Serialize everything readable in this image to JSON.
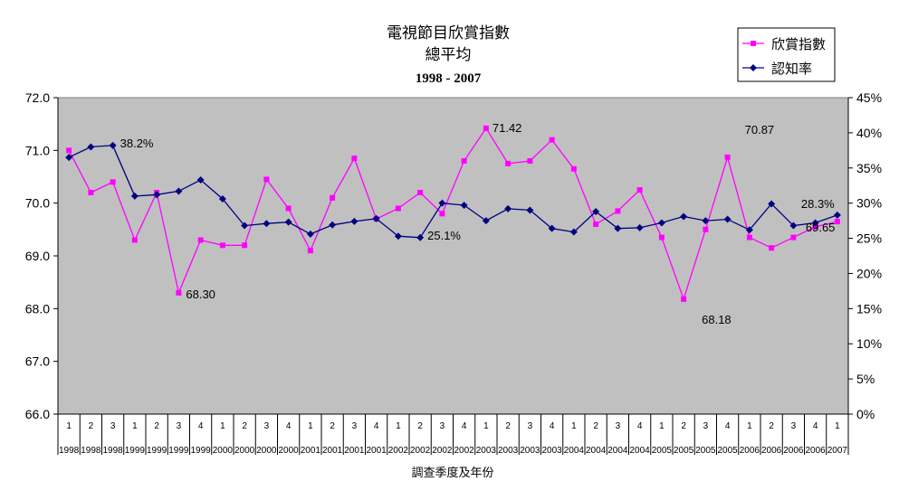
{
  "chart_data": {
    "type": "line",
    "title": "電視節目欣賞指數",
    "subtitle": "總平均",
    "period": "1998 - 2007",
    "xlabel": "調查季度及年份",
    "categories_quarter": [
      "1",
      "2",
      "3",
      "1",
      "2",
      "3",
      "4",
      "1",
      "2",
      "3",
      "4",
      "1",
      "2",
      "3",
      "4",
      "1",
      "2",
      "3",
      "4",
      "1",
      "2",
      "3",
      "4",
      "1",
      "2",
      "3",
      "4",
      "1",
      "2",
      "3",
      "4",
      "1",
      "2",
      "3",
      "4",
      "1"
    ],
    "categories_year": [
      "1998",
      "1998",
      "1998",
      "1999",
      "1999",
      "1999",
      "1999",
      "2000",
      "2000",
      "2000",
      "2000",
      "2001",
      "2001",
      "2001",
      "2001",
      "2002",
      "2002",
      "2002",
      "2002",
      "2003",
      "2003",
      "2003",
      "2003",
      "2004",
      "2004",
      "2004",
      "2004",
      "2005",
      "2005",
      "2005",
      "2005",
      "2006",
      "2006",
      "2006",
      "2006",
      "2007"
    ],
    "left_axis": {
      "min": 66.0,
      "max": 72.0,
      "ticks": [
        "66.0",
        "67.0",
        "68.0",
        "69.0",
        "70.0",
        "71.0",
        "72.0"
      ]
    },
    "right_axis": {
      "min": 0,
      "max": 45,
      "ticks": [
        "0%",
        "5%",
        "10%",
        "15%",
        "20%",
        "25%",
        "30%",
        "35%",
        "40%",
        "45%"
      ]
    },
    "grid": false,
    "legend_position": "top-right",
    "series": [
      {
        "name": "欣賞指數",
        "axis": "left",
        "color": "#ff00ff",
        "marker": "square",
        "values": [
          71.0,
          70.2,
          70.4,
          69.3,
          70.2,
          68.3,
          69.3,
          69.2,
          69.2,
          70.45,
          69.9,
          69.1,
          70.1,
          70.85,
          69.7,
          69.9,
          70.2,
          69.8,
          70.8,
          71.42,
          70.75,
          70.8,
          71.2,
          70.65,
          69.6,
          69.85,
          70.25,
          69.35,
          68.18,
          69.5,
          70.87,
          69.35,
          69.15,
          69.35,
          69.55,
          69.65
        ]
      },
      {
        "name": "認知率",
        "axis": "right",
        "color": "#000080",
        "marker": "diamond",
        "values": [
          36.5,
          38.0,
          38.2,
          31.0,
          31.2,
          31.7,
          33.3,
          30.6,
          26.8,
          27.1,
          27.3,
          25.6,
          26.9,
          27.4,
          27.8,
          25.3,
          25.1,
          30.0,
          29.7,
          27.5,
          29.2,
          29.0,
          26.4,
          25.9,
          28.8,
          26.4,
          26.5,
          27.2,
          28.1,
          27.5,
          27.7,
          26.2,
          29.9,
          26.8,
          27.2,
          28.3
        ]
      }
    ],
    "annotations": [
      {
        "series": 0,
        "index": 5,
        "text": "68.30"
      },
      {
        "series": 0,
        "index": 19,
        "text": "71.42"
      },
      {
        "series": 0,
        "index": 28,
        "text": "68.18"
      },
      {
        "series": 0,
        "index": 30,
        "text": "70.87"
      },
      {
        "series": 0,
        "index": 35,
        "text": "69.65"
      },
      {
        "series": 1,
        "index": 2,
        "text": "38.2%"
      },
      {
        "series": 1,
        "index": 16,
        "text": "25.1%"
      },
      {
        "series": 1,
        "index": 35,
        "text": "28.3%"
      }
    ],
    "plot_background": "#c0c0c0"
  }
}
